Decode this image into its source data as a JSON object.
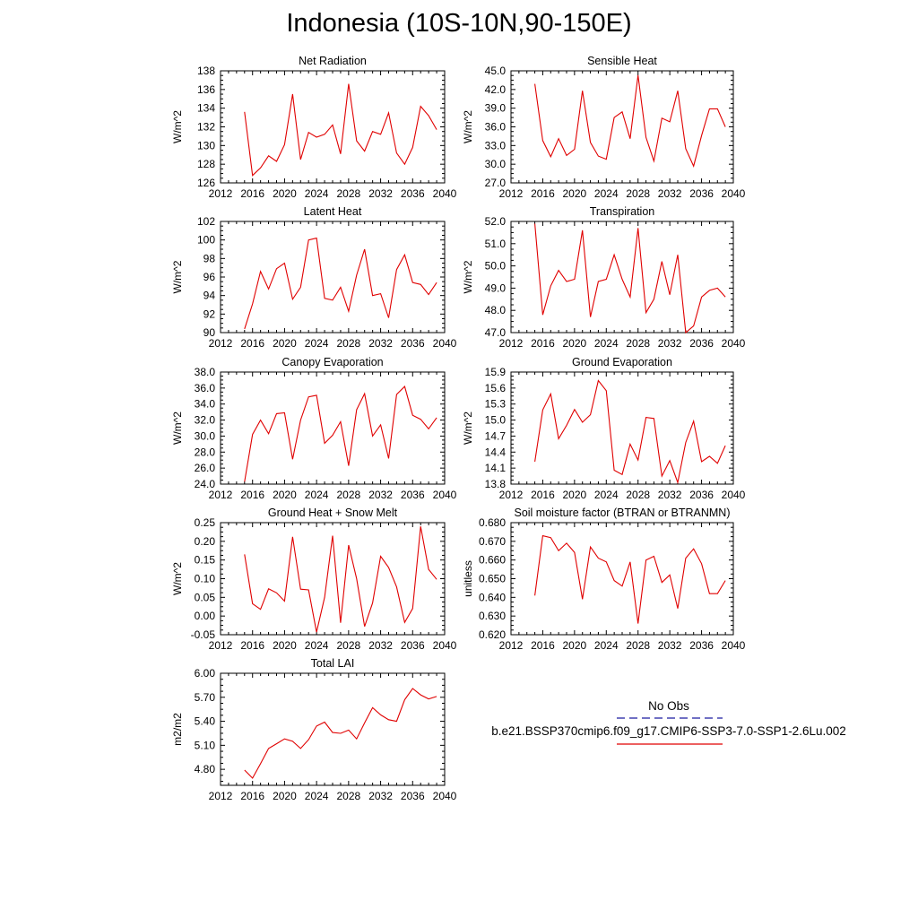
{
  "title": "Indonesia (10S-10N,90-150E)",
  "legend": {
    "entries": [
      {
        "label": "No Obs",
        "color": "#1a1aa0",
        "dash": "dashed"
      },
      {
        "label": "b.e21.BSSP370cmip6.f09_g17.CMIP6-SSP3-7.0-SSP1-2.6Lu.002",
        "color": "#e00000",
        "dash": "solid"
      }
    ]
  },
  "chart_data": [
    {
      "type": "line",
      "title": "Net Radiation",
      "ylabel": "W/m^2",
      "xlabel": "",
      "xlim": [
        2012,
        2040
      ],
      "ylim": [
        126,
        138
      ],
      "xticks": [
        "2012",
        "2016",
        "2020",
        "2024",
        "2028",
        "2032",
        "2036",
        "2040"
      ],
      "yticks": [
        "126",
        "128",
        "130",
        "132",
        "134",
        "136",
        "138"
      ],
      "series": [
        {
          "color": "#e00000",
          "x": [
            2015,
            2016,
            2017,
            2018,
            2019,
            2020,
            2021,
            2022,
            2023,
            2024,
            2025,
            2026,
            2027,
            2028,
            2029,
            2030,
            2031,
            2032,
            2033,
            2034,
            2035,
            2036,
            2037,
            2038,
            2039
          ],
          "values": [
            133.6,
            126.8,
            127.6,
            128.9,
            128.3,
            130.1,
            135.5,
            128.5,
            131.4,
            130.9,
            131.2,
            132.2,
            129.1,
            136.6,
            130.5,
            129.4,
            131.5,
            131.2,
            133.5,
            129.2,
            128.0,
            129.8,
            134.2,
            133.2,
            131.7
          ]
        }
      ]
    },
    {
      "type": "line",
      "title": "Sensible Heat",
      "ylabel": "W/m^2",
      "xlabel": "",
      "xlim": [
        2012,
        2040
      ],
      "ylim": [
        27.0,
        45.0
      ],
      "xticks": [
        "2012",
        "2016",
        "2020",
        "2024",
        "2028",
        "2032",
        "2036",
        "2040"
      ],
      "yticks": [
        "27.0",
        "30.0",
        "33.0",
        "36.0",
        "39.0",
        "42.0",
        "45.0"
      ],
      "series": [
        {
          "color": "#e00000",
          "x": [
            2015,
            2016,
            2017,
            2018,
            2019,
            2020,
            2021,
            2022,
            2023,
            2024,
            2025,
            2026,
            2027,
            2028,
            2029,
            2030,
            2031,
            2032,
            2033,
            2034,
            2035,
            2036,
            2037,
            2038,
            2039
          ],
          "values": [
            42.9,
            33.8,
            31.2,
            34.1,
            31.4,
            32.4,
            41.8,
            33.5,
            31.3,
            30.8,
            37.5,
            38.4,
            34.1,
            44.3,
            34.3,
            30.5,
            37.4,
            36.8,
            41.8,
            32.5,
            29.7,
            34.6,
            38.9,
            38.9,
            36.0
          ]
        }
      ]
    },
    {
      "type": "line",
      "title": "Latent Heat",
      "ylabel": "W/m^2",
      "xlabel": "",
      "xlim": [
        2012,
        2040
      ],
      "ylim": [
        90,
        102
      ],
      "xticks": [
        "2012",
        "2016",
        "2020",
        "2024",
        "2028",
        "2032",
        "2036",
        "2040"
      ],
      "yticks": [
        "90",
        "92",
        "94",
        "96",
        "98",
        "100",
        "102"
      ],
      "series": [
        {
          "color": "#e00000",
          "x": [
            2015,
            2016,
            2017,
            2018,
            2019,
            2020,
            2021,
            2022,
            2023,
            2024,
            2025,
            2026,
            2027,
            2028,
            2029,
            2030,
            2031,
            2032,
            2033,
            2034,
            2035,
            2036,
            2037,
            2038,
            2039
          ],
          "values": [
            90.4,
            93.1,
            96.6,
            94.7,
            96.9,
            97.5,
            93.6,
            94.9,
            100.0,
            100.2,
            93.7,
            93.5,
            94.9,
            92.3,
            96.2,
            99.0,
            94.0,
            94.2,
            91.6,
            96.8,
            98.4,
            95.4,
            95.2,
            94.1,
            95.4
          ]
        }
      ]
    },
    {
      "type": "line",
      "title": "Transpiration",
      "ylabel": "W/m^2",
      "xlabel": "",
      "xlim": [
        2012,
        2040
      ],
      "ylim": [
        47.0,
        52.0
      ],
      "xticks": [
        "2012",
        "2016",
        "2020",
        "2024",
        "2028",
        "2032",
        "2036",
        "2040"
      ],
      "yticks": [
        "47.0",
        "48.0",
        "49.0",
        "50.0",
        "51.0",
        "52.0"
      ],
      "series": [
        {
          "color": "#e00000",
          "x": [
            2015,
            2016,
            2017,
            2018,
            2019,
            2020,
            2021,
            2022,
            2023,
            2024,
            2025,
            2026,
            2027,
            2028,
            2029,
            2030,
            2031,
            2032,
            2033,
            2034,
            2035,
            2036,
            2037,
            2038,
            2039
          ],
          "values": [
            51.9,
            47.8,
            49.1,
            49.8,
            49.3,
            49.4,
            51.6,
            47.7,
            49.3,
            49.4,
            50.5,
            49.4,
            48.6,
            51.7,
            47.9,
            48.5,
            50.2,
            48.7,
            50.5,
            47.0,
            47.3,
            48.6,
            48.9,
            49.0,
            48.6
          ]
        }
      ]
    },
    {
      "type": "line",
      "title": "Canopy Evaporation",
      "ylabel": "W/m^2",
      "xlabel": "",
      "xlim": [
        2012,
        2040
      ],
      "ylim": [
        24.0,
        38.0
      ],
      "xticks": [
        "2012",
        "2016",
        "2020",
        "2024",
        "2028",
        "2032",
        "2036",
        "2040"
      ],
      "yticks": [
        "24.0",
        "26.0",
        "28.0",
        "30.0",
        "32.0",
        "34.0",
        "36.0",
        "38.0"
      ],
      "series": [
        {
          "color": "#e00000",
          "x": [
            2015,
            2016,
            2017,
            2018,
            2019,
            2020,
            2021,
            2022,
            2023,
            2024,
            2025,
            2026,
            2027,
            2028,
            2029,
            2030,
            2031,
            2032,
            2033,
            2034,
            2035,
            2036,
            2037,
            2038,
            2039
          ],
          "values": [
            24.3,
            30.2,
            32.0,
            30.3,
            32.8,
            32.9,
            27.1,
            32.0,
            34.9,
            35.1,
            29.1,
            30.1,
            31.8,
            26.3,
            33.3,
            35.3,
            30.0,
            31.4,
            27.2,
            35.2,
            36.2,
            32.6,
            32.1,
            30.9,
            32.3
          ]
        }
      ]
    },
    {
      "type": "line",
      "title": "Ground Evaporation",
      "ylabel": "W/m^2",
      "xlabel": "",
      "xlim": [
        2012,
        2040
      ],
      "ylim": [
        13.8,
        15.9
      ],
      "xticks": [
        "2012",
        "2016",
        "2020",
        "2024",
        "2028",
        "2032",
        "2036",
        "2040"
      ],
      "yticks": [
        "13.8",
        "14.1",
        "14.4",
        "14.7",
        "15.0",
        "15.3",
        "15.6",
        "15.9"
      ],
      "series": [
        {
          "color": "#e00000",
          "x": [
            2015,
            2016,
            2017,
            2018,
            2019,
            2020,
            2021,
            2022,
            2023,
            2024,
            2025,
            2026,
            2027,
            2028,
            2029,
            2030,
            2031,
            2032,
            2033,
            2034,
            2035,
            2036,
            2037,
            2038,
            2039
          ],
          "values": [
            14.22,
            15.19,
            15.49,
            14.65,
            14.9,
            15.2,
            14.96,
            15.1,
            15.74,
            15.55,
            14.06,
            13.98,
            14.55,
            14.25,
            15.05,
            15.03,
            13.95,
            14.24,
            13.83,
            14.58,
            14.98,
            14.22,
            14.32,
            14.19,
            14.52
          ]
        }
      ]
    },
    {
      "type": "line",
      "title": "Ground Heat + Snow Melt",
      "ylabel": "W/m^2",
      "xlabel": "",
      "xlim": [
        2012,
        2040
      ],
      "ylim": [
        -0.05,
        0.25
      ],
      "xticks": [
        "2012",
        "2016",
        "2020",
        "2024",
        "2028",
        "2032",
        "2036",
        "2040"
      ],
      "yticks": [
        "-0.05",
        "0.00",
        "0.05",
        "0.10",
        "0.15",
        "0.20",
        "0.25"
      ],
      "series": [
        {
          "color": "#e00000",
          "x": [
            2015,
            2016,
            2017,
            2018,
            2019,
            2020,
            2021,
            2022,
            2023,
            2024,
            2025,
            2026,
            2027,
            2028,
            2029,
            2030,
            2031,
            2032,
            2033,
            2034,
            2035,
            2036,
            2037,
            2038,
            2039
          ],
          "values": [
            0.165,
            0.033,
            0.018,
            0.073,
            0.062,
            0.04,
            0.212,
            0.072,
            0.07,
            -0.043,
            0.05,
            0.215,
            -0.018,
            0.19,
            0.1,
            -0.028,
            0.035,
            0.16,
            0.13,
            0.078,
            -0.017,
            0.02,
            0.24,
            0.125,
            0.098
          ]
        }
      ]
    },
    {
      "type": "line",
      "title": "Soil moisture factor (BTRAN or BTRANMN)",
      "ylabel": "unitless",
      "xlabel": "",
      "xlim": [
        2012,
        2040
      ],
      "ylim": [
        0.62,
        0.68
      ],
      "xticks": [
        "2012",
        "2016",
        "2020",
        "2024",
        "2028",
        "2032",
        "2036",
        "2040"
      ],
      "yticks": [
        "0.620",
        "0.630",
        "0.640",
        "0.650",
        "0.660",
        "0.670",
        "0.680"
      ],
      "series": [
        {
          "color": "#e00000",
          "x": [
            2015,
            2016,
            2017,
            2018,
            2019,
            2020,
            2021,
            2022,
            2023,
            2024,
            2025,
            2026,
            2027,
            2028,
            2029,
            2030,
            2031,
            2032,
            2033,
            2034,
            2035,
            2036,
            2037,
            2038,
            2039
          ],
          "values": [
            0.641,
            0.673,
            0.672,
            0.665,
            0.669,
            0.664,
            0.639,
            0.667,
            0.661,
            0.659,
            0.649,
            0.646,
            0.659,
            0.626,
            0.66,
            0.662,
            0.648,
            0.652,
            0.634,
            0.661,
            0.666,
            0.658,
            0.642,
            0.642,
            0.649
          ]
        }
      ]
    },
    {
      "type": "line",
      "title": "Total LAI",
      "ylabel": "m2/m2",
      "xlabel": "",
      "xlim": [
        2012,
        2040
      ],
      "ylim": [
        4.6,
        6.0
      ],
      "xticks": [
        "2012",
        "2016",
        "2020",
        "2024",
        "2028",
        "2032",
        "2036",
        "2040"
      ],
      "yticks": [
        "4.80",
        "5.10",
        "5.40",
        "5.70",
        "6.00"
      ],
      "series": [
        {
          "color": "#e00000",
          "x": [
            2015,
            2016,
            2017,
            2018,
            2019,
            2020,
            2021,
            2022,
            2023,
            2024,
            2025,
            2026,
            2027,
            2028,
            2029,
            2030,
            2031,
            2032,
            2033,
            2034,
            2035,
            2036,
            2037,
            2038,
            2039
          ],
          "values": [
            4.79,
            4.69,
            4.87,
            5.06,
            5.12,
            5.18,
            5.15,
            5.06,
            5.17,
            5.34,
            5.39,
            5.26,
            5.25,
            5.29,
            5.18,
            5.38,
            5.57,
            5.48,
            5.42,
            5.4,
            5.67,
            5.81,
            5.73,
            5.68,
            5.71
          ]
        }
      ]
    }
  ]
}
